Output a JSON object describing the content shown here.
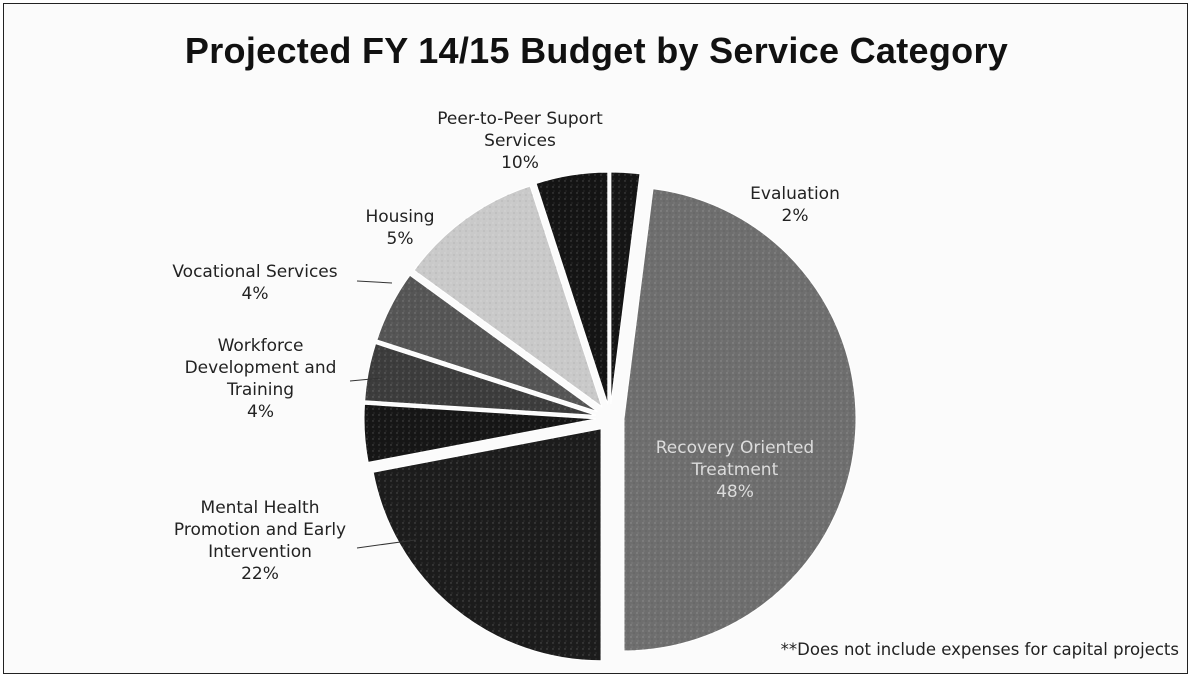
{
  "chart_data": {
    "type": "pie",
    "title": "Projected FY 14/15 Budget by Service Category",
    "footnote": "**Does not include expenses for capital projects",
    "slices": [
      {
        "name": "Evaluation",
        "label_lines": [
          "Evaluation"
        ],
        "percent_label": "2%",
        "value": 2,
        "color": "#151515",
        "label_inside": false
      },
      {
        "name": "Recovery Oriented Treatment",
        "label_lines": [
          "Recovery Oriented",
          "Treatment"
        ],
        "percent_label": "48%",
        "value": 48,
        "color": "#6e6e6e",
        "label_inside": true
      },
      {
        "name": "Mental Health Promotion and Early Intervention",
        "label_lines": [
          "Mental Health",
          "Promotion and Early",
          "Intervention"
        ],
        "percent_label": "22%",
        "value": 22,
        "color": "#1c1c1c",
        "label_inside": false
      },
      {
        "name": "Workforce Development and Training",
        "label_lines": [
          "Workforce",
          "Development and",
          "Training"
        ],
        "percent_label": "4%",
        "value": 4,
        "color": "#161616",
        "label_inside": false
      },
      {
        "name": "Vocational Services",
        "label_lines": [
          "Vocational Services"
        ],
        "percent_label": "4%",
        "value": 4,
        "color": "#3c3c3c",
        "label_inside": false
      },
      {
        "name": "Housing",
        "label_lines": [
          "Housing"
        ],
        "percent_label": "5%",
        "value": 5,
        "color": "#555555",
        "label_inside": false
      },
      {
        "name": "Peer-to-Peer Suport Services",
        "label_lines": [
          "Peer-to-Peer Suport",
          "Services"
        ],
        "percent_label": "10%",
        "value": 10,
        "color": "#c9c9c9",
        "label_inside": false
      },
      {
        "name": "(unlabeled)",
        "label_lines": [],
        "percent_label": "",
        "value": 5,
        "color": "#141414",
        "label_inside": false
      }
    ]
  }
}
